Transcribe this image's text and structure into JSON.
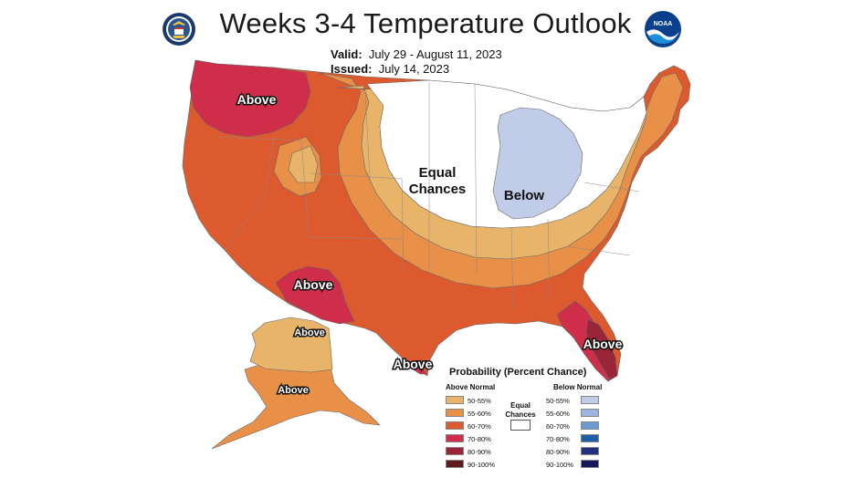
{
  "header": {
    "title": "Weeks 3-4 Temperature Outlook",
    "valid_label": "Valid:",
    "valid_value": "July 29 - August 11, 2023",
    "issued_label": "Issued:",
    "issued_value": "July 14, 2023"
  },
  "logos": {
    "left": {
      "icon": "department-of-commerce-seal-icon"
    },
    "right": {
      "icon": "noaa-logo-icon",
      "text": "NOAA"
    }
  },
  "map": {
    "labels": {
      "northwest": "Above",
      "central": "Equal\nChances",
      "central_line1": "Equal",
      "central_line2": "Chances",
      "great_lakes": "Below",
      "southwest": "Above",
      "florida": "Above",
      "texas_coast": "Above",
      "alaska_north": "Above",
      "alaska_south": "Above"
    },
    "colors": {
      "above_50_55": "#E8B46A",
      "above_55_60": "#E88F48",
      "above_60_70": "#DC5A2E",
      "above_70_80": "#CE2E4A",
      "above_80_90": "#9A2438",
      "above_90_100": "#5E1A1E",
      "equal": "#FFFFFF",
      "below_50_55": "#C0CCE8",
      "below_55_60": "#9CB4E0",
      "below_60_70": "#6E9AD4",
      "below_70_80": "#1F5FA8",
      "below_80_90": "#233080",
      "below_90_100": "#14185A"
    }
  },
  "legend": {
    "title": "Probability (Percent Chance)",
    "above_heading": "Above Normal",
    "below_heading": "Below Normal",
    "equal_label_1": "Equal",
    "equal_label_2": "Chances",
    "above": [
      {
        "label": "50-55%",
        "color": "#E8B46A"
      },
      {
        "label": "55-60%",
        "color": "#E88F48"
      },
      {
        "label": "60-70%",
        "color": "#DC5A2E"
      },
      {
        "label": "70-80%",
        "color": "#CE2E4A"
      },
      {
        "label": "80-90%",
        "color": "#9A2438"
      },
      {
        "label": "90-100%",
        "color": "#5E1A1E"
      }
    ],
    "below": [
      {
        "label": "50-55%",
        "color": "#C0CCE8"
      },
      {
        "label": "55-60%",
        "color": "#9CB4E0"
      },
      {
        "label": "60-70%",
        "color": "#6E9AD4"
      },
      {
        "label": "70-80%",
        "color": "#1F5FA8"
      },
      {
        "label": "80-90%",
        "color": "#233080"
      },
      {
        "label": "90-100%",
        "color": "#14185A"
      }
    ]
  }
}
